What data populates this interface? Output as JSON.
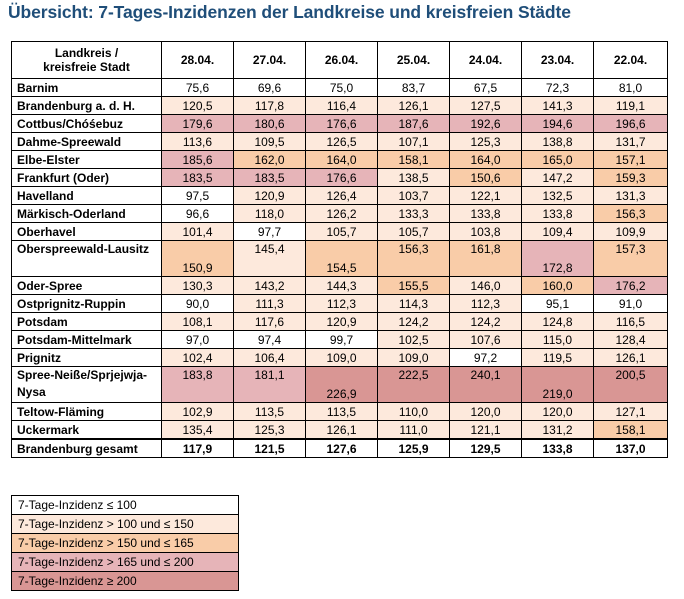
{
  "title": "Übersicht: 7-Tages-Inzidenzen der Landkreise und kreisfreien Städte",
  "colors": {
    "le100": "#ffffff",
    "100to150": "#fde9dc",
    "150to165": "#f9cca8",
    "165to200": "#e6b4b8",
    "ge200": "#d99694"
  },
  "table": {
    "header_line1": "Landkreis /",
    "header_line2": "kreisfreie Stadt",
    "dates": [
      "28.04.",
      "27.04.",
      "26.04.",
      "25.04.",
      "24.04.",
      "23.04.",
      "22.04."
    ],
    "rows": [
      {
        "name": "Barnim",
        "values": [
          "75,6",
          "69,6",
          "75,0",
          "83,7",
          "67,5",
          "72,3",
          "81,0"
        ]
      },
      {
        "name": "Brandenburg a. d. H.",
        "values": [
          "120,5",
          "117,8",
          "116,4",
          "126,1",
          "127,5",
          "141,3",
          "119,1"
        ]
      },
      {
        "name": "Cottbus/Chóśebuz",
        "values": [
          "179,6",
          "180,6",
          "176,6",
          "187,6",
          "192,6",
          "194,6",
          "196,6"
        ]
      },
      {
        "name": "Dahme-Spreewald",
        "values": [
          "113,6",
          "109,5",
          "126,5",
          "107,1",
          "125,3",
          "138,8",
          "131,7"
        ]
      },
      {
        "name": "Elbe-Elster",
        "values": [
          "185,6",
          "162,0",
          "164,0",
          "158,1",
          "164,0",
          "165,0",
          "157,1"
        ]
      },
      {
        "name": "Frankfurt (Oder)",
        "values": [
          "183,5",
          "183,5",
          "176,6",
          "138,5",
          "150,6",
          "147,2",
          "159,3"
        ]
      },
      {
        "name": "Havelland",
        "values": [
          "97,5",
          "120,9",
          "126,4",
          "103,7",
          "122,1",
          "132,5",
          "131,3"
        ]
      },
      {
        "name": "Märkisch-Oderland",
        "values": [
          "96,6",
          "118,0",
          "126,2",
          "133,3",
          "133,8",
          "133,8",
          "156,3"
        ]
      },
      {
        "name": "Oberhavel",
        "values": [
          "101,4",
          "97,7",
          "105,7",
          "105,7",
          "103,8",
          "109,4",
          "109,9"
        ]
      },
      {
        "name": "Oberspreewald-Lausitz",
        "values": [
          "150,9",
          "145,4",
          "154,5",
          "156,3",
          "161,8",
          "172,8",
          "157,3"
        ]
      },
      {
        "name": "Oder-Spree",
        "values": [
          "130,3",
          "143,2",
          "144,3",
          "155,5",
          "146,0",
          "160,0",
          "176,2"
        ]
      },
      {
        "name": "Ostprignitz-Ruppin",
        "values": [
          "90,0",
          "111,3",
          "112,3",
          "114,3",
          "112,3",
          "95,1",
          "91,0"
        ]
      },
      {
        "name": "Potsdam",
        "values": [
          "108,1",
          "117,6",
          "120,9",
          "124,2",
          "124,2",
          "124,8",
          "116,5"
        ]
      },
      {
        "name": "Potsdam-Mittelmark",
        "values": [
          "97,0",
          "97,4",
          "99,7",
          "102,5",
          "107,6",
          "115,0",
          "128,4"
        ]
      },
      {
        "name": "Prignitz",
        "values": [
          "102,4",
          "106,4",
          "109,0",
          "109,0",
          "97,2",
          "119,5",
          "126,1"
        ]
      },
      {
        "name": "Spree-Neiße/Sprjejwja-Nysa",
        "values": [
          "183,8",
          "181,1",
          "226,9",
          "222,5",
          "240,1",
          "219,0",
          "200,5"
        ]
      },
      {
        "name": "Teltow-Fläming",
        "values": [
          "102,9",
          "113,5",
          "113,5",
          "110,0",
          "120,0",
          "120,0",
          "127,1"
        ]
      },
      {
        "name": "Uckermark",
        "values": [
          "135,4",
          "125,3",
          "126,1",
          "111,0",
          "121,1",
          "131,2",
          "158,1"
        ]
      }
    ],
    "total": {
      "name": "Brandenburg gesamt",
      "values": [
        "117,9",
        "121,5",
        "127,6",
        "125,9",
        "129,5",
        "133,8",
        "137,0"
      ]
    }
  },
  "legend": [
    "7-Tage-Inzidenz ≤ 100",
    "7-Tage-Inzidenz > 100 und ≤ 150",
    "7-Tage-Inzidenz > 150 und ≤ 165",
    "7-Tage-Inzidenz > 165 und ≤ 200",
    "7-Tage-Inzidenz ≥ 200"
  ]
}
